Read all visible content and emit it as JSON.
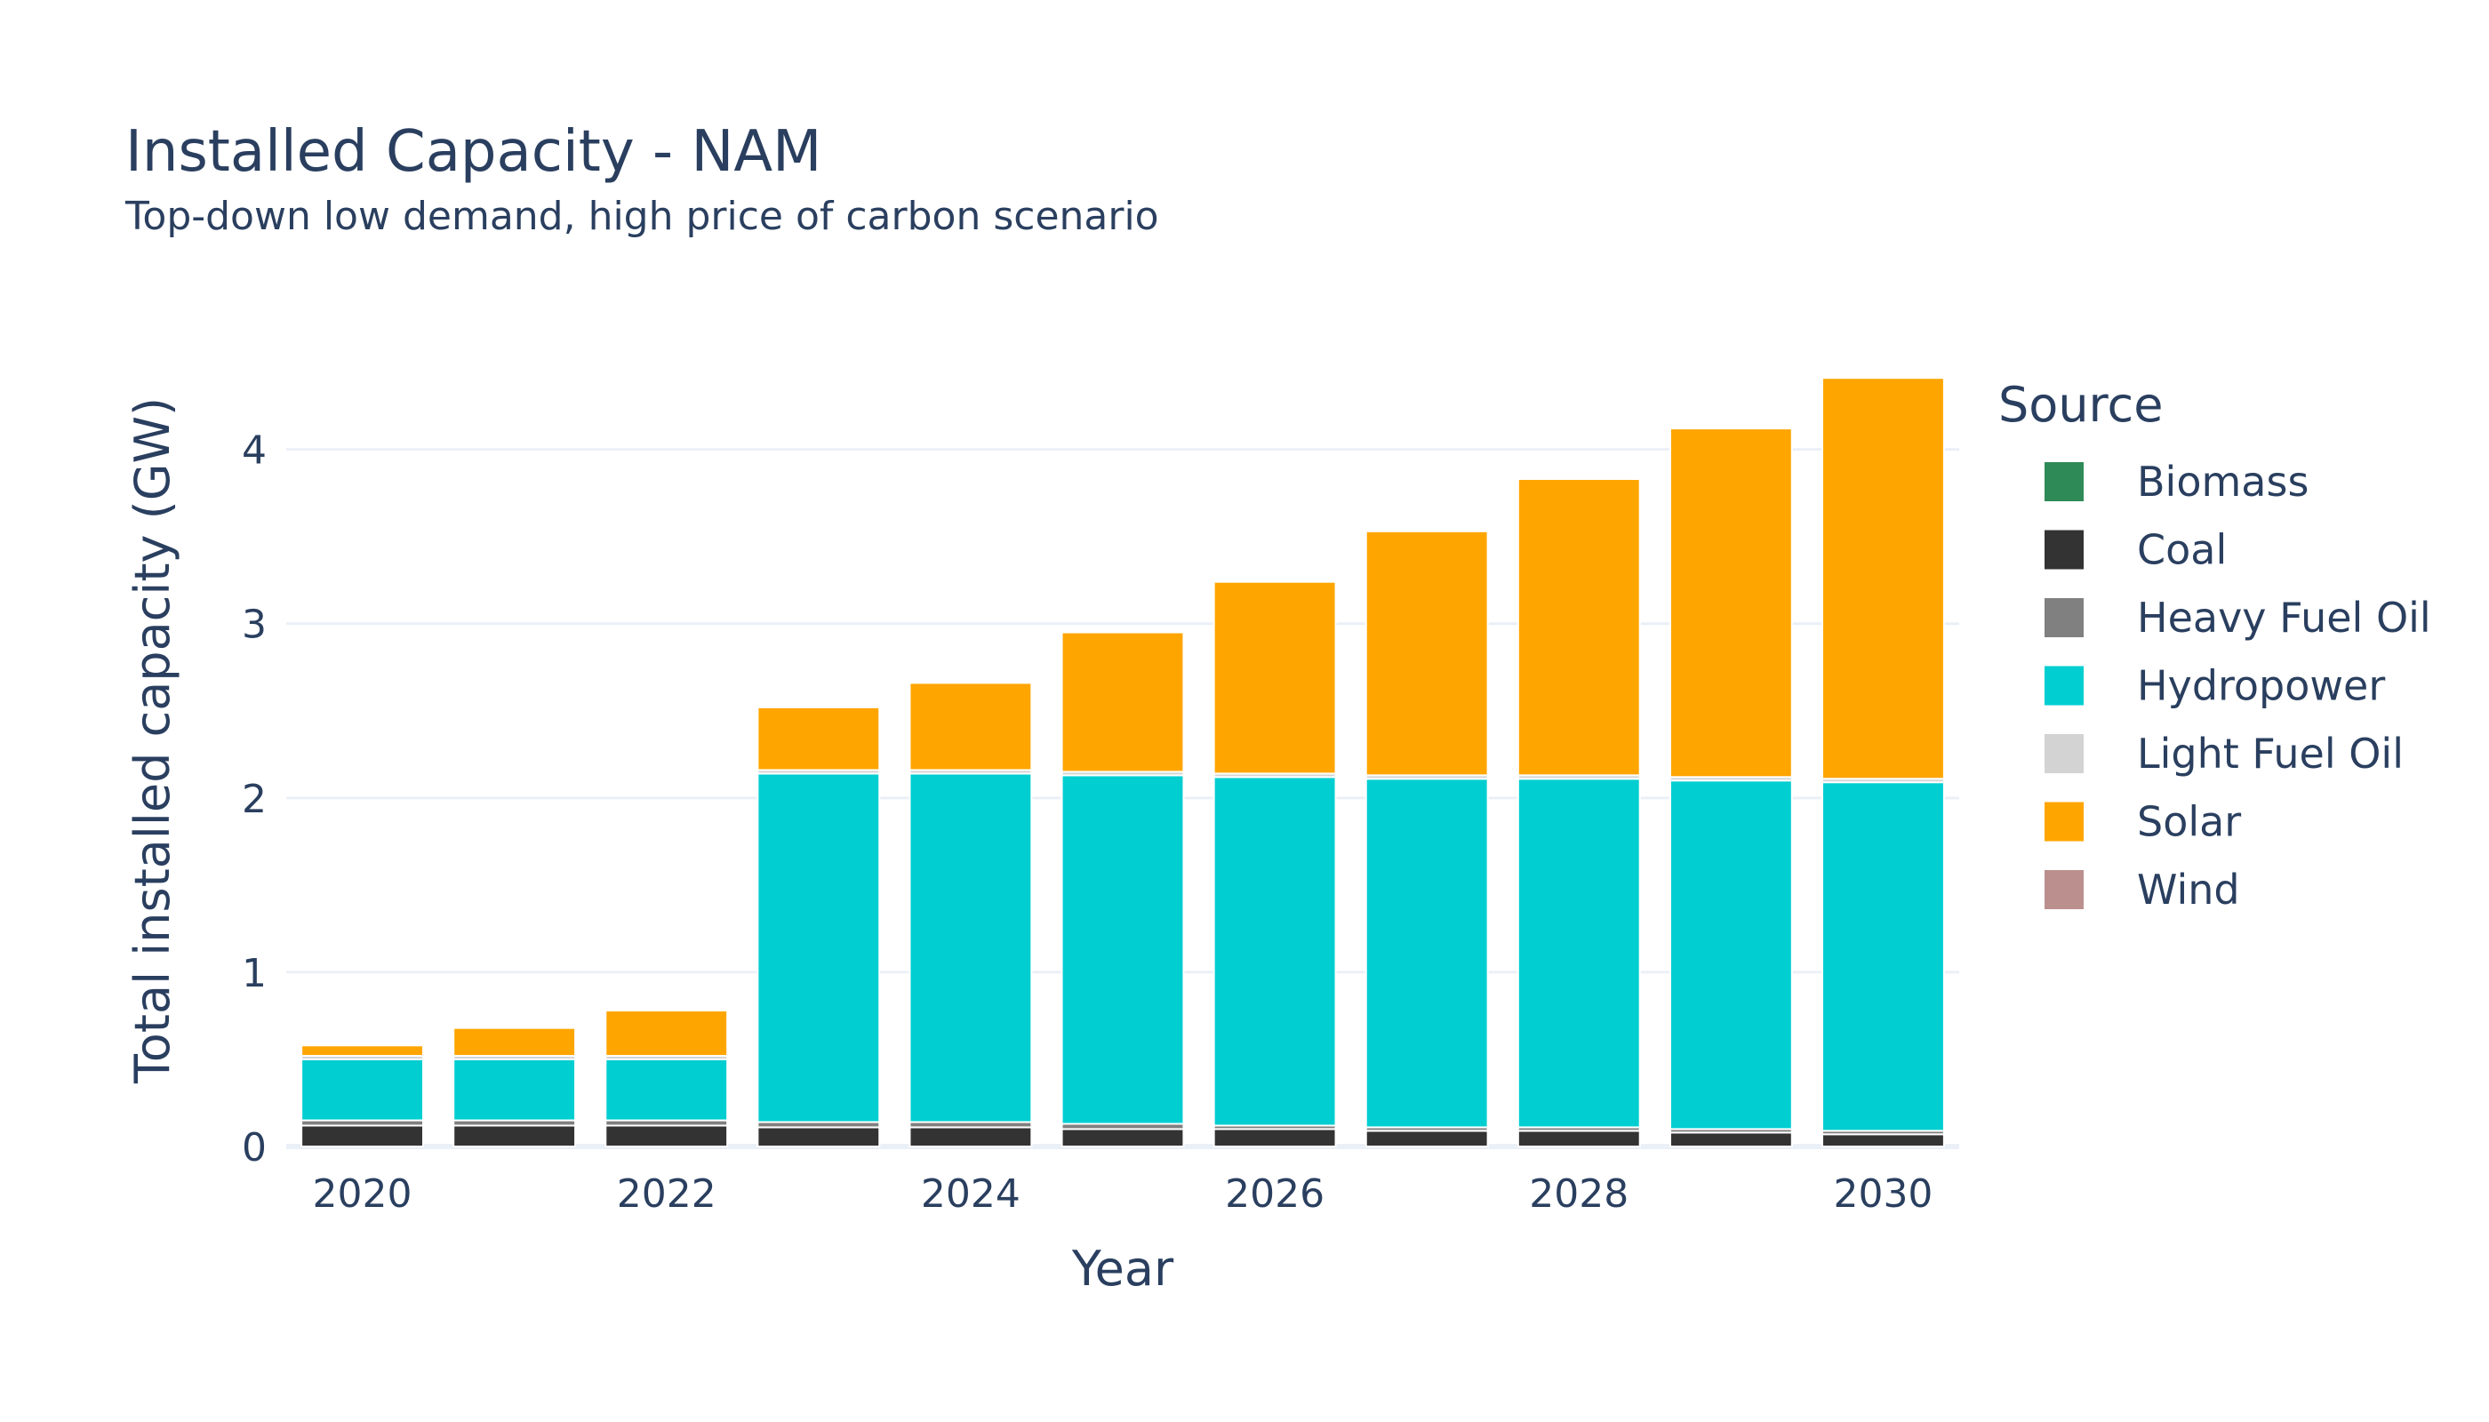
{
  "title": "Installed Capacity - NAM",
  "subtitle": "Top-down low demand, high price of carbon scenario",
  "chart_data": {
    "type": "bar",
    "barmode": "stack",
    "title": "Installed Capacity - NAM",
    "subtitle": "Top-down low demand, high price of carbon scenario",
    "xlabel": "Year",
    "ylabel": "Total installed capacity (GW)",
    "x": [
      2020,
      2021,
      2022,
      2023,
      2024,
      2025,
      2026,
      2027,
      2028,
      2029,
      2030
    ],
    "xticks": [
      2020,
      2022,
      2024,
      2026,
      2028,
      2030
    ],
    "yticks": [
      0,
      1,
      2,
      3,
      4
    ],
    "ylim": [
      0,
      4.6
    ],
    "xlim": [
      2019.5,
      2030.5
    ],
    "grid": true,
    "legend_title": "Source",
    "legend_position": "right",
    "series": [
      {
        "name": "Biomass",
        "color": "#2e8b57",
        "values": [
          0,
          0,
          0,
          0,
          0,
          0,
          0,
          0,
          0,
          0,
          0
        ]
      },
      {
        "name": "Coal",
        "color": "#333333",
        "values": [
          0.12,
          0.12,
          0.12,
          0.11,
          0.11,
          0.1,
          0.1,
          0.09,
          0.09,
          0.08,
          0.07
        ]
      },
      {
        "name": "Heavy Fuel Oil",
        "color": "#808080",
        "values": [
          0.03,
          0.03,
          0.03,
          0.03,
          0.03,
          0.03,
          0.02,
          0.02,
          0.02,
          0.02,
          0.02
        ]
      },
      {
        "name": "Hydropower",
        "color": "#00ced1",
        "values": [
          0.35,
          0.35,
          0.35,
          2.0,
          2.0,
          2.0,
          2.0,
          2.0,
          2.0,
          2.0,
          2.0
        ]
      },
      {
        "name": "Light Fuel Oil",
        "color": "#d3d3d3",
        "values": [
          0.02,
          0.02,
          0.02,
          0.02,
          0.02,
          0.02,
          0.02,
          0.02,
          0.02,
          0.02,
          0.02
        ]
      },
      {
        "name": "Solar",
        "color": "#ffa500",
        "values": [
          0.06,
          0.16,
          0.26,
          0.36,
          0.5,
          0.8,
          1.1,
          1.4,
          1.7,
          2.0,
          2.3
        ]
      },
      {
        "name": "Wind",
        "color": "#bc8f8f",
        "values": [
          0,
          0,
          0,
          0,
          0,
          0,
          0,
          0,
          0,
          0,
          0
        ]
      }
    ]
  }
}
